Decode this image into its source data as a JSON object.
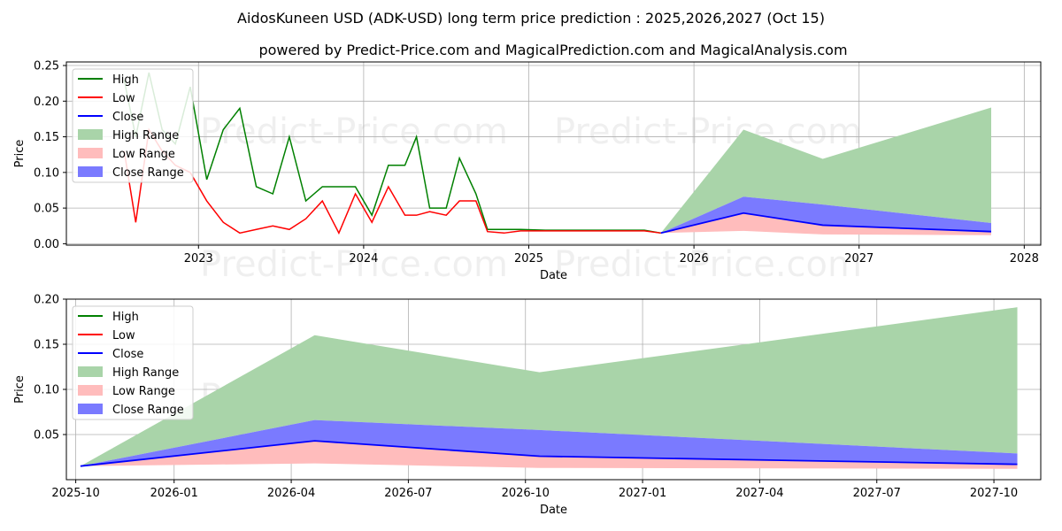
{
  "title": "AidosKuneen USD (ADK-USD) long term price prediction : 2025,2026,2027 (Oct 15)",
  "subtitle": "powered by Predict-Price.com and MagicalPrediction.com and MagicalAnalysis.com",
  "watermark": "Predict-Price.com",
  "colors": {
    "high": "#008000",
    "low": "#ff0000",
    "close": "#0000ff",
    "high_range": "#a9d4a9",
    "low_range": "#ffbcbc",
    "close_range": "#7a7aff",
    "grid": "#b0b0b0"
  },
  "legend": [
    "High",
    "Low",
    "Close",
    "High Range",
    "Low Range",
    "Close Range"
  ],
  "chart_data": [
    {
      "type": "line",
      "panel": "top",
      "xlabel": "Date",
      "ylabel": "Price",
      "xlim": [
        2022.2,
        2028.1
      ],
      "ylim": [
        -0.002,
        0.255
      ],
      "xticks": [
        2023,
        2024,
        2025,
        2026,
        2027,
        2028
      ],
      "xtick_labels": [
        "2023",
        "2024",
        "2025",
        "2026",
        "2027",
        "2028"
      ],
      "yticks": [
        0.0,
        0.05,
        0.1,
        0.15,
        0.2,
        0.25
      ],
      "ytick_labels": [
        "0.00",
        "0.05",
        "0.10",
        "0.15",
        "0.20",
        "0.25"
      ],
      "history": {
        "x": [
          2022.55,
          2022.62,
          2022.7,
          2022.78,
          2022.86,
          2022.95,
          2023.05,
          2023.15,
          2023.25,
          2023.35,
          2023.45,
          2023.55,
          2023.65,
          2023.75,
          2023.85,
          2023.95,
          2024.05,
          2024.15,
          2024.25,
          2024.32,
          2024.4,
          2024.5,
          2024.58,
          2024.68,
          2024.75,
          2024.85,
          2024.95,
          2025.1,
          2025.3,
          2025.5,
          2025.7,
          2025.8
        ],
        "high": [
          0.23,
          0.15,
          0.24,
          0.16,
          0.14,
          0.22,
          0.09,
          0.16,
          0.19,
          0.08,
          0.07,
          0.15,
          0.06,
          0.08,
          0.08,
          0.08,
          0.04,
          0.11,
          0.11,
          0.15,
          0.05,
          0.05,
          0.12,
          0.07,
          0.02,
          0.02,
          0.02,
          0.019,
          0.019,
          0.019,
          0.019,
          0.015
        ],
        "low": [
          0.13,
          0.03,
          0.16,
          0.13,
          0.11,
          0.1,
          0.06,
          0.03,
          0.015,
          0.02,
          0.025,
          0.02,
          0.035,
          0.06,
          0.015,
          0.07,
          0.03,
          0.08,
          0.04,
          0.04,
          0.045,
          0.04,
          0.06,
          0.06,
          0.017,
          0.015,
          0.018,
          0.018,
          0.018,
          0.018,
          0.018,
          0.015
        ]
      },
      "forecast": {
        "x": [
          2025.8,
          2026.3,
          2026.78,
          2027.8
        ],
        "high_range": [
          0.015,
          0.16,
          0.119,
          0.191
        ],
        "close_range_upper": [
          0.015,
          0.066,
          0.055,
          0.029
        ],
        "close": [
          0.015,
          0.043,
          0.026,
          0.017
        ],
        "low_range_upper": [
          0.015,
          0.043,
          0.026,
          0.017
        ],
        "low_range_lower": [
          0.015,
          0.018,
          0.013,
          0.012
        ]
      }
    },
    {
      "type": "area",
      "panel": "bottom",
      "xlabel": "Date",
      "ylabel": "Price",
      "xlim": [
        2025.77,
        2027.85
      ],
      "ylim": [
        0.0,
        0.2
      ],
      "xticks": [
        2025.79,
        2026.0,
        2026.25,
        2026.5,
        2026.75,
        2027.0,
        2027.25,
        2027.5,
        2027.75
      ],
      "xtick_labels": [
        "2025-10",
        "2026-01",
        "2026-04",
        "2026-07",
        "2026-10",
        "2027-01",
        "2027-04",
        "2027-07",
        "2027-10"
      ],
      "yticks": [
        0.05,
        0.1,
        0.15,
        0.2
      ],
      "ytick_labels": [
        "0.05",
        "0.10",
        "0.15",
        "0.20"
      ],
      "forecast": {
        "x": [
          2025.8,
          2026.3,
          2026.78,
          2027.8
        ],
        "high_range": [
          0.015,
          0.16,
          0.119,
          0.191
        ],
        "close_range_upper": [
          0.015,
          0.066,
          0.055,
          0.029
        ],
        "close": [
          0.015,
          0.043,
          0.026,
          0.017
        ],
        "low_range_upper": [
          0.015,
          0.043,
          0.026,
          0.017
        ],
        "low_range_lower": [
          0.015,
          0.018,
          0.013,
          0.012
        ]
      }
    }
  ]
}
